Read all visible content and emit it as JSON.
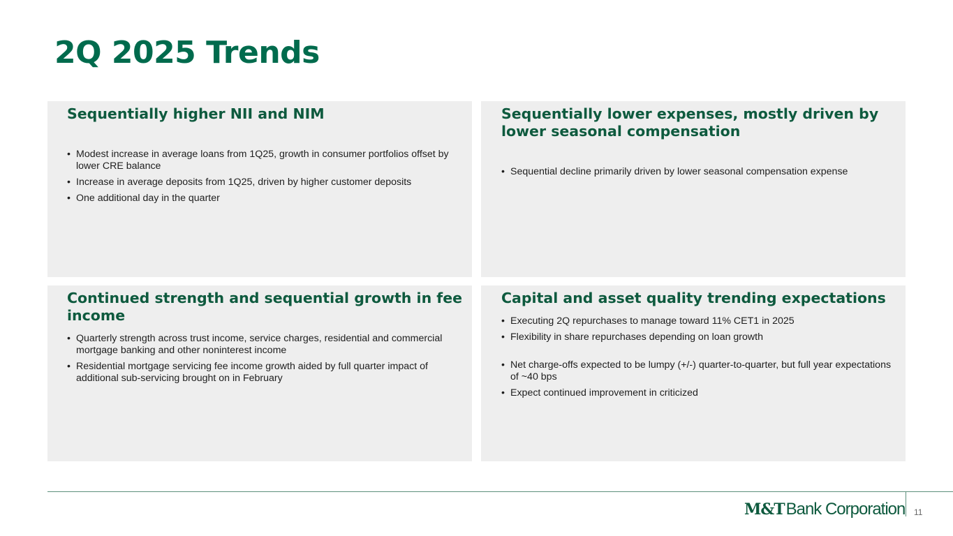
{
  "slide": {
    "title": "2Q 2025 Trends",
    "page_number": "11"
  },
  "panels": {
    "nii": {
      "heading": "Sequentially higher NII and NIM",
      "bullets": [
        "Modest increase in average loans from 1Q25, growth in consumer portfolios offset by lower CRE balance",
        "Increase in average deposits from 1Q25, driven by higher customer deposits",
        "One additional day in the quarter"
      ]
    },
    "expenses": {
      "heading": "Sequentially lower expenses, mostly driven by lower seasonal compensation",
      "bullets": [
        "Sequential decline primarily driven by lower seasonal compensation expense"
      ]
    },
    "fee_income": {
      "heading": "Continued strength and sequential growth in fee income",
      "bullets": [
        "Quarterly strength across trust income, service charges, residential and commercial mortgage banking and other noninterest income",
        "Residential mortgage servicing fee income growth aided by full quarter impact of additional sub-servicing brought on in February"
      ]
    },
    "capital": {
      "heading": "Capital and asset quality trending expectations",
      "bullets": [
        "Executing 2Q repurchases to manage toward 11% CET1 in 2025",
        "Flexibility in share repurchases depending on loan growth",
        "Net charge-offs expected to be lumpy (+/-) quarter-to-quarter, but full year expectations of ~40 bps",
        "Expect continued improvement in criticized"
      ]
    }
  },
  "footer": {
    "logo_mark": "M&T",
    "logo_text": "Bank Corporation"
  },
  "colors": {
    "title_green": "#006b4d",
    "heading_green": "#0e5a3e",
    "panel_bg": "#eeeeee",
    "rule": "#5d8f7c"
  }
}
